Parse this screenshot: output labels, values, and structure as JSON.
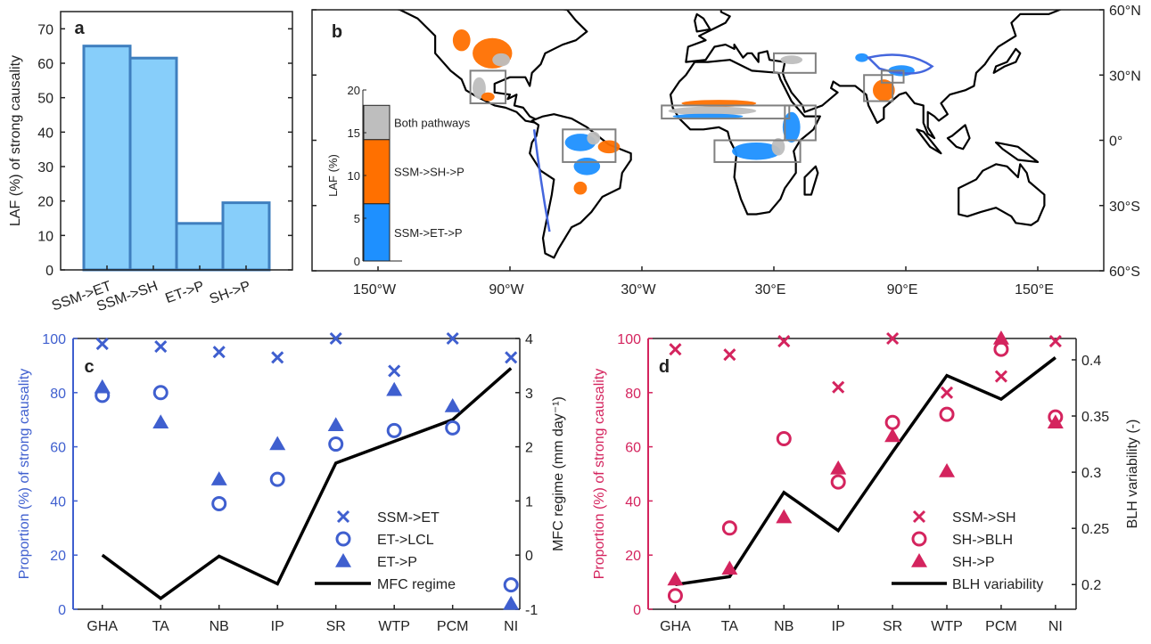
{
  "colors": {
    "bar_fill": "#87cefa",
    "bar_edge": "#3f7fbf",
    "panel_c": "#3f5fcf",
    "panel_d": "#d4245e",
    "line": "#000000",
    "box": "#808080",
    "et": "#1e90ff",
    "sh": "#ff7000",
    "both": "#bebebe",
    "land": "#ffffff"
  },
  "chart_data": [
    {
      "panel": "a",
      "type": "bar",
      "categories": [
        "SSM->ET",
        "SSM->SH",
        "ET->P",
        "SH->P"
      ],
      "values": [
        65,
        61.5,
        13.5,
        19.5
      ],
      "ylabel": "LAF (%) of strong causality",
      "ylim": [
        0,
        75
      ],
      "yticks": [
        0,
        10,
        20,
        30,
        40,
        50,
        60,
        70
      ],
      "grid": false
    },
    {
      "panel": "b",
      "type": "map",
      "lon_ticks": [
        "150°W",
        "90°W",
        "30°W",
        "30°E",
        "90°E",
        "150°E"
      ],
      "lat_ticks": [
        "60°N",
        "30°N",
        "0°",
        "30°S",
        "60°S"
      ],
      "inset": {
        "type": "bar",
        "stacked": true,
        "ylabel": "LAF (%)",
        "ylim": [
          0,
          20
        ],
        "yticks": [
          0,
          5,
          10,
          15,
          20
        ],
        "series": [
          {
            "name": "SSM->ET->P",
            "value": 6.7
          },
          {
            "name": "SSM->SH->P",
            "value": 7.5
          },
          {
            "name": "Both pathways",
            "value": 4.0
          }
        ]
      }
    },
    {
      "panel": "c",
      "type": "scatter",
      "categories": [
        "GHA",
        "TA",
        "NB",
        "IP",
        "SR",
        "WTP",
        "PCM",
        "NI"
      ],
      "ylabel": "Proportion (%) of strong causality",
      "y2label": "MFC regime (mm day⁻¹)",
      "ylim": [
        0,
        100
      ],
      "yticks": [
        0,
        20,
        40,
        60,
        80,
        100
      ],
      "y2lim": [
        -1,
        4
      ],
      "y2ticks": [
        -1,
        0,
        1,
        2,
        3,
        4
      ],
      "legend": "bottom-right",
      "series": [
        {
          "name": "SSM->ET",
          "marker": "x",
          "values": [
            98,
            97,
            95,
            93,
            100,
            88,
            100,
            93
          ]
        },
        {
          "name": "ET->LCL",
          "marker": "o",
          "values": [
            79,
            80,
            39,
            48,
            61,
            66,
            67,
            9
          ]
        },
        {
          "name": "ET->P",
          "marker": "triangle",
          "values": [
            82,
            69,
            48,
            61,
            68,
            81,
            75,
            2
          ]
        },
        {
          "name": "MFC regime",
          "marker": "line",
          "axis": "right",
          "values": [
            0,
            -0.8,
            -0.02,
            -0.53,
            1.7,
            2.1,
            2.5,
            3.45
          ]
        }
      ]
    },
    {
      "panel": "d",
      "type": "scatter",
      "categories": [
        "GHA",
        "TA",
        "NB",
        "IP",
        "SR",
        "WTP",
        "PCM",
        "NI"
      ],
      "ylabel": "Proportion (%) of strong causality",
      "y2label": "BLH variability (-)",
      "ylim": [
        0,
        100
      ],
      "yticks": [
        0,
        20,
        40,
        60,
        80,
        100
      ],
      "y2lim": [
        0.178,
        0.419
      ],
      "y2ticks": [
        0.2,
        0.25,
        0.3,
        0.35,
        0.4
      ],
      "legend": "bottom-right",
      "series": [
        {
          "name": "SSM->SH",
          "marker": "x",
          "values": [
            96,
            94,
            99,
            82,
            100,
            80,
            86,
            99
          ]
        },
        {
          "name": "SH->BLH",
          "marker": "o",
          "values": [
            5,
            30,
            63,
            47,
            69,
            72,
            96,
            71
          ]
        },
        {
          "name": "SH->P",
          "marker": "triangle",
          "values": [
            11,
            15,
            34,
            52,
            64,
            51,
            100,
            69
          ]
        },
        {
          "name": "BLH variability",
          "marker": "line",
          "axis": "right",
          "values": [
            0.2,
            0.207,
            0.282,
            0.248,
            0.318,
            0.386,
            0.365,
            0.402
          ]
        }
      ]
    }
  ]
}
